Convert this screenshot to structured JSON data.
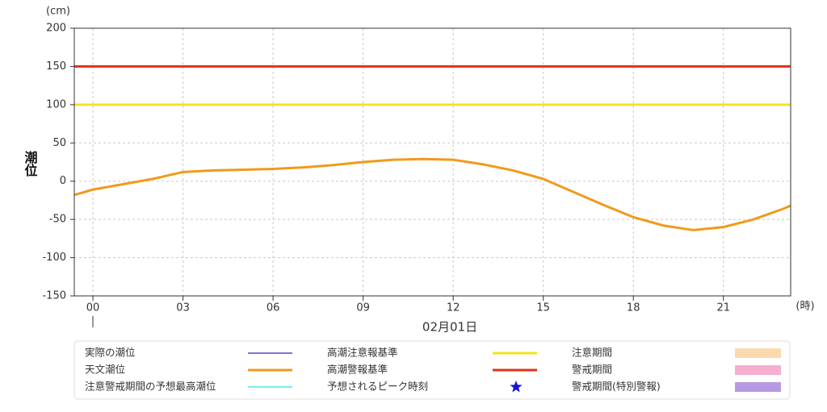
{
  "chart_data": {
    "type": "line",
    "y_label": "潮位",
    "y_unit": "(cm)",
    "x_unit": "(時)",
    "x_label": "02月01日",
    "xlim": [
      -0.62,
      23.24
    ],
    "xticks": [
      {
        "value": 0,
        "label": "00"
      },
      {
        "value": 3,
        "label": "03"
      },
      {
        "value": 6,
        "label": "06"
      },
      {
        "value": 9,
        "label": "09"
      },
      {
        "value": 12,
        "label": "12"
      },
      {
        "value": 15,
        "label": "15"
      },
      {
        "value": 18,
        "label": "18"
      },
      {
        "value": 21,
        "label": "21"
      }
    ],
    "ylim": [
      -150,
      200
    ],
    "yticks": [
      -150,
      -100,
      -50,
      0,
      50,
      100,
      150,
      200
    ],
    "grid": true,
    "x": [
      -0.62,
      0,
      1,
      2,
      3,
      4,
      5,
      6,
      7,
      8,
      9,
      10,
      11,
      12,
      13,
      14,
      15,
      16,
      17,
      18,
      19,
      20,
      21,
      22,
      23,
      23.24
    ],
    "series": [
      {
        "name": "実際の潮位",
        "color": "#3b1fc4",
        "marker": "line"
      },
      {
        "name": "天文潮位",
        "color": "#f19a1c",
        "marker": "line",
        "values": [
          -18,
          -11,
          -4,
          3,
          12,
          14,
          15,
          16,
          18,
          21,
          25,
          28,
          29,
          28,
          22,
          14,
          3,
          -14,
          -31,
          -47,
          -58,
          -64,
          -60,
          -50,
          -36,
          -32
        ]
      },
      {
        "name": "注意警戒期間の予想最高潮位",
        "color": "#22e8e8",
        "marker": "line"
      },
      {
        "name": "高潮注意報基準",
        "color": "#f2e31f",
        "marker": "line",
        "value": 100
      },
      {
        "name": "高潮警報基準",
        "color": "#e0311c",
        "marker": "line",
        "value": 150
      },
      {
        "name": "予想されるピーク時刻",
        "color": "#1515d6",
        "marker": "star"
      },
      {
        "name": "注意期間",
        "color": "#fbdab0",
        "marker": "rect"
      },
      {
        "name": "警戒期間",
        "color": "#f6aed0",
        "marker": "rect"
      },
      {
        "name": "警戒期間(特別警報)",
        "color": "#b79ae3",
        "marker": "rect"
      }
    ]
  }
}
